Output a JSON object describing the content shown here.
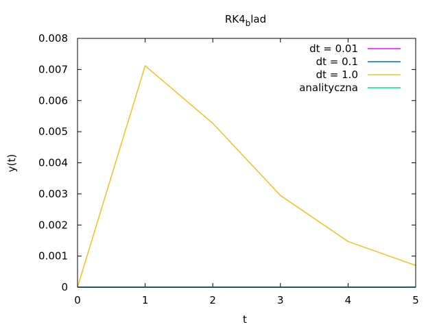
{
  "chart_data": {
    "type": "line",
    "title_main": "RK4",
    "title_sub": "b",
    "title_rest": "lad",
    "xlabel": "t",
    "ylabel": "y(t)",
    "xlim": [
      0,
      5
    ],
    "ylim": [
      0,
      0.008
    ],
    "xticks": [
      "0",
      "1",
      "2",
      "3",
      "4",
      "5"
    ],
    "yticks": [
      "0",
      "0.001",
      "0.002",
      "0.003",
      "0.004",
      "0.005",
      "0.006",
      "0.007",
      "0.008"
    ],
    "legend_position": "top-right",
    "series": [
      {
        "name": "dt = 0.01",
        "color": "#ff00ff",
        "x": [
          0,
          1,
          2,
          3,
          4,
          5
        ],
        "y": [
          0,
          0,
          0,
          0,
          0,
          0
        ]
      },
      {
        "name": "dt = 0.1",
        "color": "#0072b2",
        "x": [
          0,
          1,
          2,
          3,
          4,
          5
        ],
        "y": [
          0,
          0,
          0,
          0,
          0,
          0
        ]
      },
      {
        "name": "dt = 1.0",
        "color": "#f0c020",
        "x": [
          0,
          1,
          2,
          3,
          4,
          5
        ],
        "y": [
          0,
          0.00712,
          0.00527,
          0.00295,
          0.00147,
          0.0007
        ]
      },
      {
        "name": "analityczna",
        "color": "#00e08a",
        "x": [
          0,
          1,
          2,
          3,
          4,
          5
        ],
        "y": [
          0,
          0,
          0,
          0,
          0,
          0
        ]
      }
    ]
  }
}
